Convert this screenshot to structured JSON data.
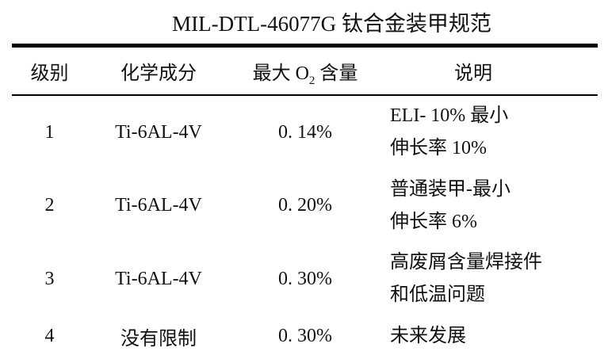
{
  "title": "MIL-DTL-46077G 钛合金装甲规范",
  "table": {
    "headers": {
      "grade": "级别",
      "composition": "化学成分",
      "max_o2_prefix": "最大 O",
      "max_o2_sub": "2",
      "max_o2_suffix": " 含量",
      "description": "说明"
    },
    "rows": [
      {
        "grade": "1",
        "composition": "Ti-6AL-4V",
        "max_o2": "0. 14%",
        "description_line1": "ELI- 10% 最小",
        "description_line2": "伸长率 10%"
      },
      {
        "grade": "2",
        "composition": "Ti-6AL-4V",
        "max_o2": "0. 20%",
        "description_line1": "普通装甲-最小",
        "description_line2": "伸长率 6%"
      },
      {
        "grade": "3",
        "composition": "Ti-6AL-4V",
        "max_o2": "0. 30%",
        "description_line1": "高废屑含量焊接件",
        "description_line2": "和低温问题"
      },
      {
        "grade": "4",
        "composition": "没有限制",
        "max_o2": "0. 30%",
        "description_line1": "未来发展",
        "description_line2": ""
      }
    ]
  },
  "colors": {
    "background": "#ffffff",
    "text": "#111111",
    "rule": "#000000"
  }
}
